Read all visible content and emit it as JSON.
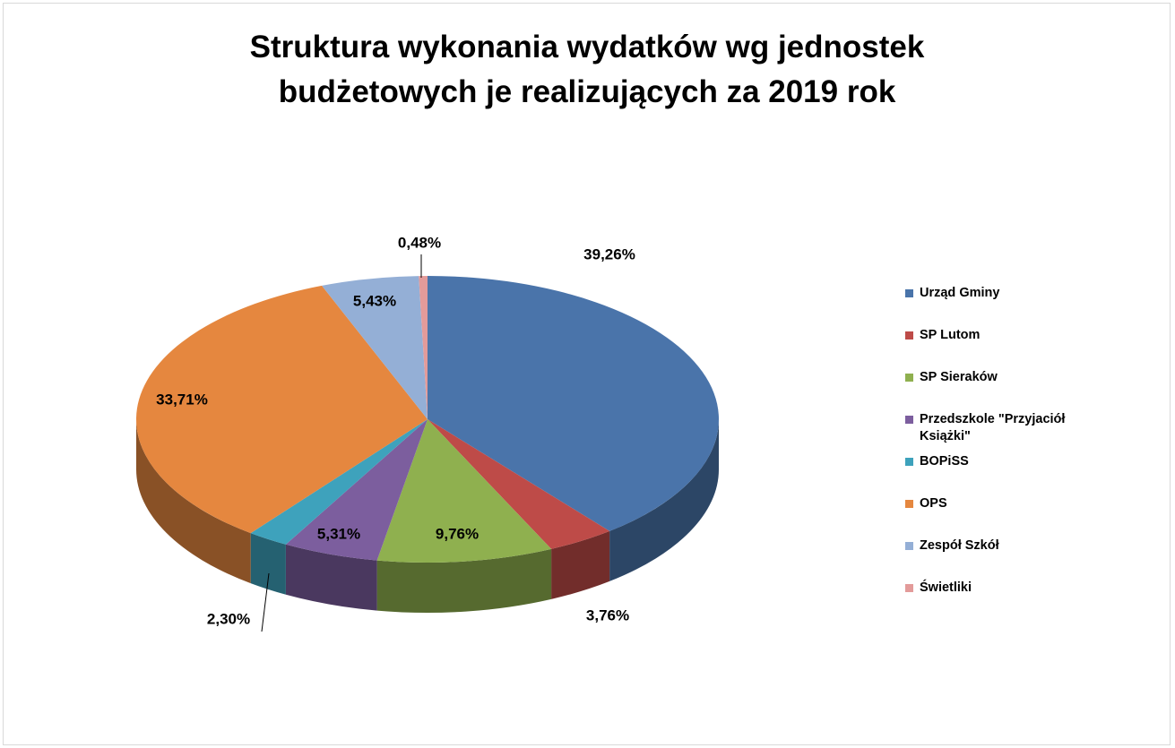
{
  "chart_data": {
    "type": "pie3d",
    "title": "Struktura wykonania wydatków wg jednostek budżetowych je realizujących za 2019 rok",
    "categories": [
      "Urząd Gminy",
      "SP Lutom",
      "SP Sieraków",
      "Przedszkole \"Przyjaciół Książki\"",
      "BOPiSS",
      "OPS",
      "Zespół Szkół",
      "Świetliki"
    ],
    "values": [
      39.26,
      3.76,
      9.76,
      5.31,
      2.3,
      33.71,
      5.43,
      0.48
    ],
    "value_labels": [
      "39,26%",
      "3,76%",
      "9,76%",
      "5,31%",
      "2,30%",
      "33,71%",
      "5,43%",
      "0,48%"
    ],
    "colors": [
      "#4a74aa",
      "#be4b48",
      "#8fb04f",
      "#7c5e9e",
      "#3ea2bc",
      "#e5873f",
      "#94afd6",
      "#e39b9a"
    ],
    "legend": "right"
  }
}
